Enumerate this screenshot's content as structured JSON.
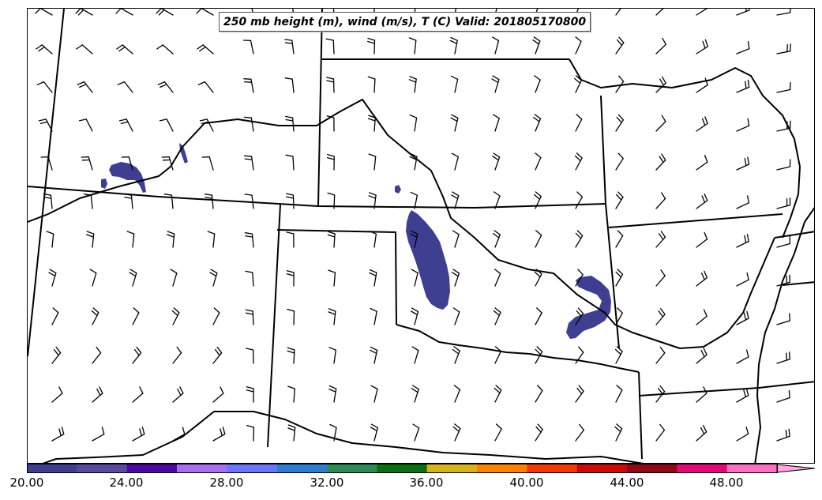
{
  "title": "250 mb height (m), wind (m/s), T (C) Valid: 201805170800",
  "colorbar": {
    "ticks": [
      "20.00",
      "24.00",
      "28.00",
      "32.00",
      "36.00",
      "40.00",
      "44.00",
      "48.00"
    ],
    "colors": [
      "#3f3f92",
      "#5a4a9e",
      "#4b0aa6",
      "#a66ff0",
      "#6b76ff",
      "#2f7dcc",
      "#2e8b57",
      "#0a6f14",
      "#d7b21c",
      "#ff8200",
      "#f03a00",
      "#cc0a0a",
      "#8b0a14",
      "#e00a74",
      "#ff6fbf"
    ],
    "extend_color": "#ffa8e0"
  },
  "colors": {
    "temperature_fill": "#3f3f92",
    "boundaries": "#000000",
    "barbs": "#000000"
  },
  "layers": {
    "basemap": "state-boundaries",
    "wind": "wind-barbs",
    "temperature": "temperature-shading"
  }
}
